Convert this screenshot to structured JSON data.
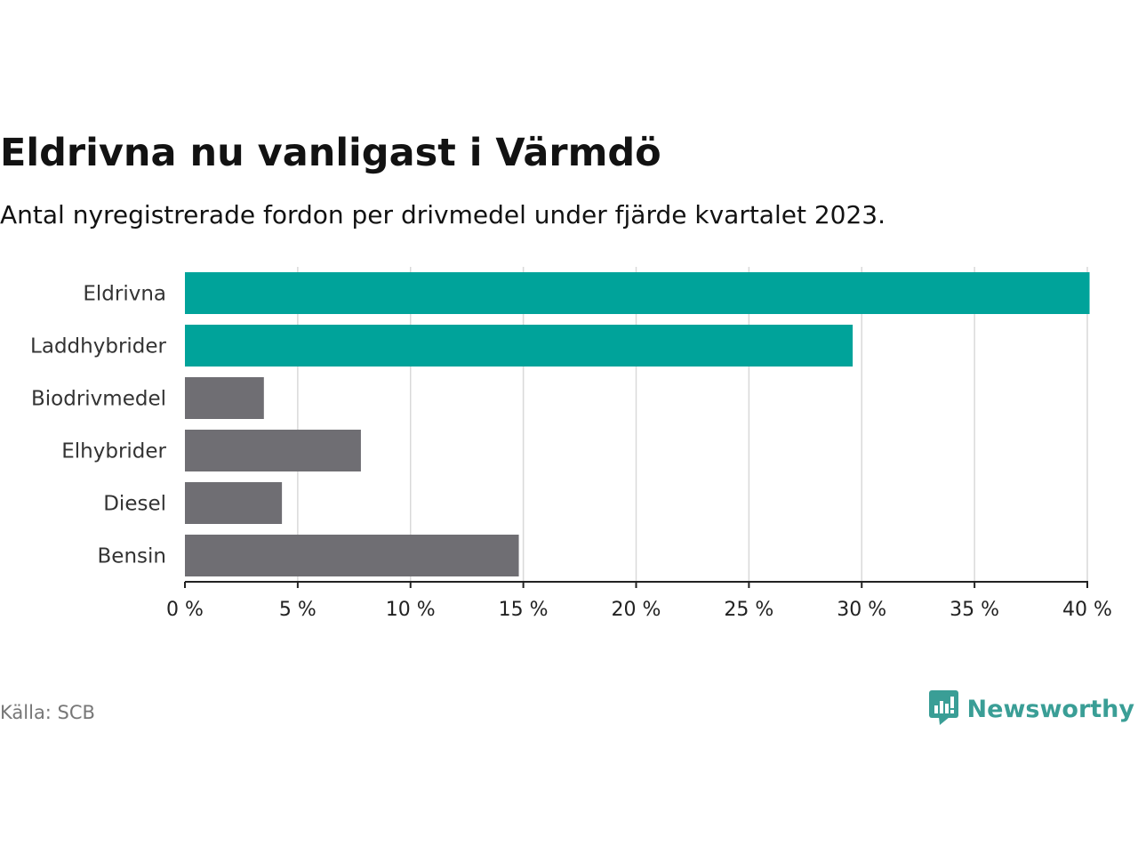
{
  "title": "Eldrivna nu vanligast i Värmdö",
  "subtitle": "Antal nyregistrerade fordon per drivmedel under fjärde kvartalet 2023.",
  "source": "Källa: SCB",
  "brand": "Newsworthy",
  "colors": {
    "highlight": "#00a39a",
    "default": "#6f6e73",
    "grid": "#d9d9d9",
    "axis": "#222222",
    "brand": "#3a9e96"
  },
  "icons": {
    "logo": "newsworthy-logo-icon"
  },
  "chart_data": {
    "type": "bar",
    "orientation": "horizontal",
    "title": "Eldrivna nu vanligast i Värmdö",
    "subtitle": "Antal nyregistrerade fordon per drivmedel under fjärde kvartalet 2023.",
    "xlabel": "",
    "ylabel": "",
    "xlim": [
      0,
      40
    ],
    "grid": true,
    "categories": [
      "Eldrivna",
      "Laddhybrider",
      "Biodrivmedel",
      "Elhybrider",
      "Diesel",
      "Bensin"
    ],
    "values": [
      40.1,
      29.6,
      3.5,
      7.8,
      4.3,
      14.8
    ],
    "highlighted": [
      true,
      true,
      false,
      false,
      false,
      false
    ],
    "ticks": [
      0,
      5,
      10,
      15,
      20,
      25,
      30,
      35,
      40
    ],
    "tick_labels": [
      "0 %",
      "5 %",
      "10 %",
      "15 %",
      "20 %",
      "25 %",
      "30 %",
      "35 %",
      "40 %"
    ]
  }
}
